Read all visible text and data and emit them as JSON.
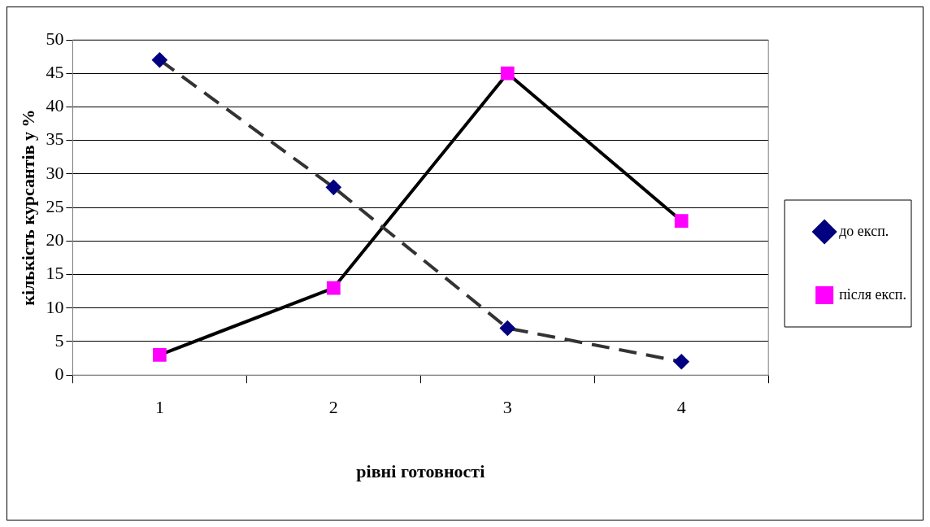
{
  "chart_data": {
    "type": "line",
    "xlabel": "рівні готовності",
    "ylabel": "кількість курсантів у %",
    "categories": [
      "1",
      "2",
      "3",
      "4"
    ],
    "series": [
      {
        "name": "до експ.",
        "color": "#000080",
        "values": [
          47,
          28,
          7,
          2
        ],
        "marker": "diamond",
        "line_style": "dashed"
      },
      {
        "name": "після експ.",
        "color": "#ff00ff",
        "values": [
          3,
          13,
          45,
          23
        ],
        "marker": "square",
        "line_style": "solid"
      }
    ],
    "ylim": [
      0,
      50
    ],
    "yticks": [
      0,
      5,
      10,
      15,
      20,
      25,
      30,
      35,
      40,
      45,
      50
    ],
    "grid": "y",
    "legend": "right"
  }
}
